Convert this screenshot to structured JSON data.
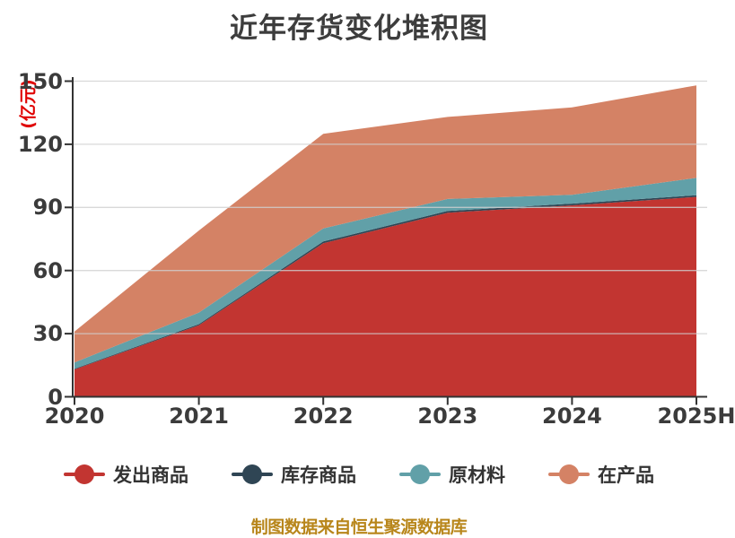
{
  "chart_data": {
    "type": "area",
    "stacked": true,
    "title": "近年存货变化堆积图",
    "ylabel": "(亿元)",
    "xlabel": "",
    "categories": [
      "2020",
      "2021",
      "2022",
      "2023",
      "2024",
      "2025H"
    ],
    "y_tick_labels": [
      "0",
      "30",
      "60",
      "90",
      "120",
      "150"
    ],
    "ylim": [
      0,
      150
    ],
    "y_tick_step": 30,
    "grid": true,
    "legend_position": "bottom",
    "series": [
      {
        "name": "发出商品",
        "color": "#c23531",
        "values": [
          13,
          34,
          73,
          87.5,
          91,
          95
        ]
      },
      {
        "name": "库存商品",
        "color": "#2f4554",
        "values": [
          0.3,
          0.5,
          0.8,
          0.8,
          0.8,
          0.8
        ]
      },
      {
        "name": "原材料",
        "color": "#61a0a8",
        "values": [
          3,
          5.5,
          6.2,
          5.7,
          4.2,
          8.2
        ]
      },
      {
        "name": "在产品",
        "color": "#d48265",
        "values": [
          14.7,
          39,
          45,
          39,
          41.5,
          44
        ]
      }
    ],
    "stacked_totals": [
      31,
      79,
      125,
      133,
      137.5,
      148
    ]
  },
  "footer": {
    "source_note": "制图数据来自恒生聚源数据库"
  },
  "colors": {
    "background": "#ffffff",
    "title": "#3d3d3d",
    "axis": "#333333",
    "tick_label": "#3b3b3b",
    "grid": "#cfcfcf",
    "ylabel": "#e00000",
    "source_note": "#b8861b"
  }
}
